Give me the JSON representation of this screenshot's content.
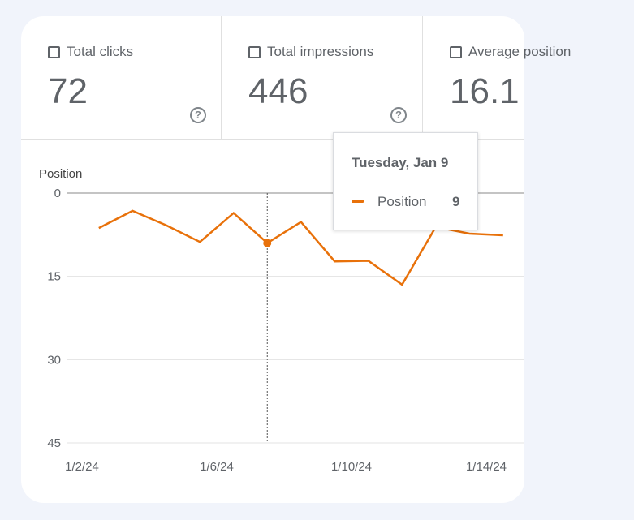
{
  "metrics": [
    {
      "label": "Total clicks",
      "value": "72"
    },
    {
      "label": "Total impressions",
      "value": "446"
    },
    {
      "label": "Average position",
      "value": "16.1"
    }
  ],
  "help_glyph": "?",
  "chart_data": {
    "type": "line",
    "title": "",
    "ylabel": "Position",
    "ylim": [
      0,
      45
    ],
    "y_inverted": true,
    "y_ticks": [
      "0",
      "15",
      "30",
      "45"
    ],
    "x_ticks": [
      "1/2/24",
      "1/6/24",
      "1/10/24",
      "1/14/24"
    ],
    "series": [
      {
        "name": "Position",
        "color": "#e8710a",
        "x": [
          2.5,
          3.5,
          4.5,
          5.5,
          6.5,
          7.5,
          8.5,
          9.5,
          10.5,
          11.5,
          12.5,
          13.5,
          14.5
        ],
        "values": [
          6.3,
          3.2,
          5.8,
          8.8,
          3.6,
          9.0,
          5.2,
          12.3,
          12.2,
          16.5,
          6.1,
          7.3,
          7.6
        ]
      }
    ],
    "highlight": {
      "x": 7.5,
      "value": 9.0
    }
  },
  "tooltip": {
    "date": "Tuesday, Jan 9",
    "series": "Position",
    "value": "9"
  }
}
